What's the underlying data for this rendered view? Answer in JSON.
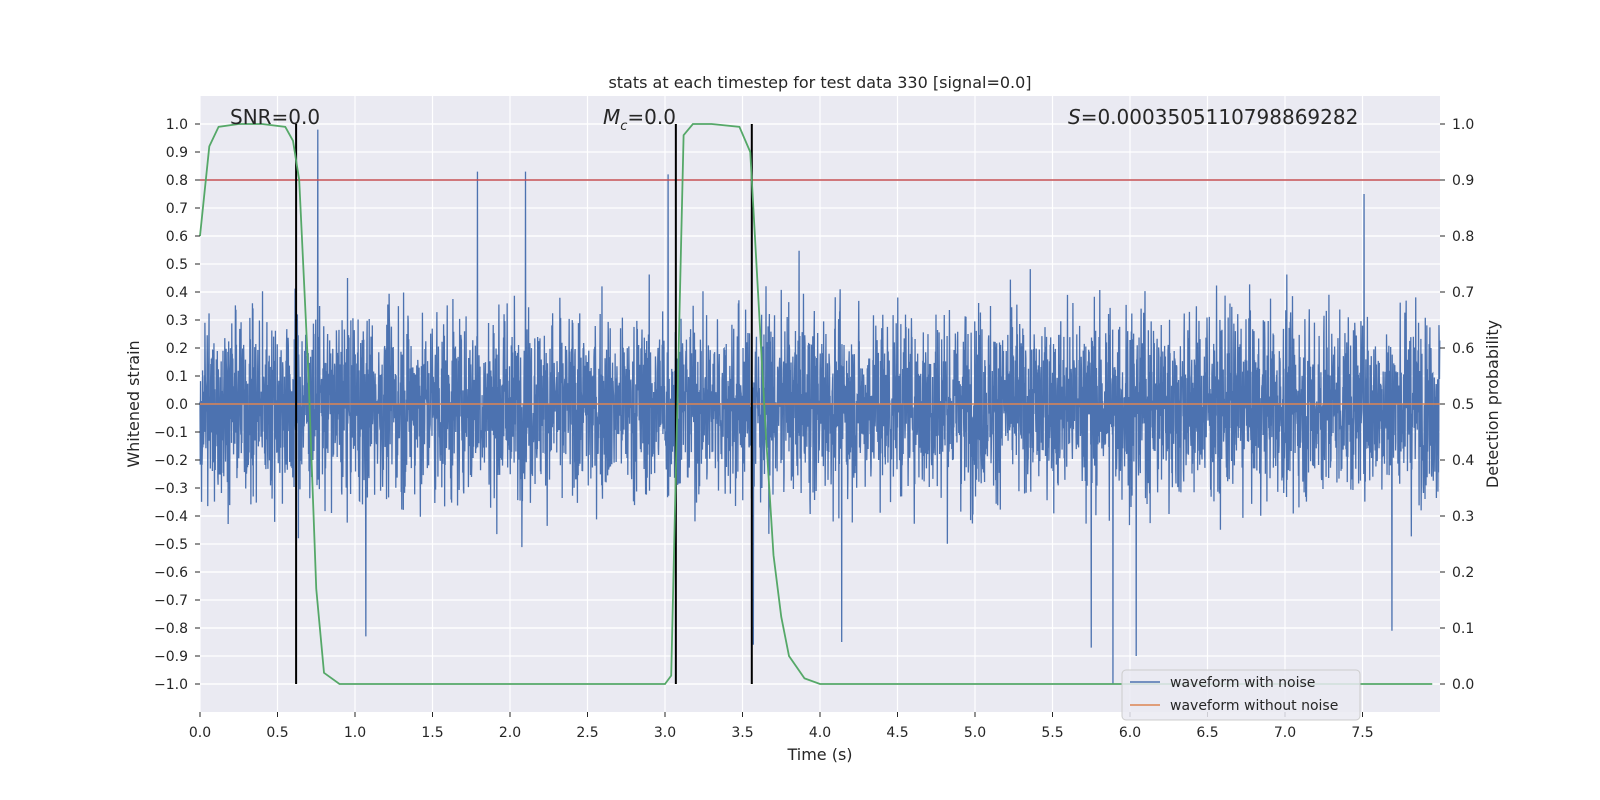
{
  "chart_data": {
    "type": "line",
    "title": "stats at each timestep for test data 330 [signal=0.0]",
    "xlabel": "Time (s)",
    "ylabel": "Whitened strain",
    "y2label": "Detection probability",
    "xlim": [
      0.0,
      8.0
    ],
    "ylim": [
      -1.1,
      1.1
    ],
    "y2lim": [
      -0.05,
      1.05
    ],
    "x_ticks": [
      0.0,
      0.5,
      1.0,
      1.5,
      2.0,
      2.5,
      3.0,
      3.5,
      4.0,
      4.5,
      5.0,
      5.5,
      6.0,
      6.5,
      7.0,
      7.5
    ],
    "x_tick_labels": [
      "0.0",
      "0.5",
      "1.0",
      "1.5",
      "2.0",
      "2.5",
      "3.0",
      "3.5",
      "4.0",
      "4.5",
      "5.0",
      "5.5",
      "6.0",
      "6.5",
      "7.0",
      "7.5"
    ],
    "y_ticks": [
      1.0,
      0.9,
      0.8,
      0.7,
      0.6,
      0.5,
      0.4,
      0.3,
      0.2,
      0.1,
      0.0,
      -0.1,
      -0.2,
      -0.3,
      -0.4,
      -0.5,
      -0.6,
      -0.7,
      -0.8,
      -0.9,
      -1.0
    ],
    "y_tick_labels": [
      "1.0",
      "0.9",
      "0.8",
      "0.7",
      "0.6",
      "0.5",
      "0.4",
      "0.3",
      "0.2",
      "0.1",
      "0.0",
      "−0.1",
      "−0.2",
      "−0.3",
      "−0.4",
      "−0.5",
      "−0.6",
      "−0.7",
      "−0.8",
      "−0.9",
      "−1.0"
    ],
    "y2_ticks": [
      1.0,
      0.9,
      0.8,
      0.7,
      0.6,
      0.5,
      0.4,
      0.3,
      0.2,
      0.1,
      0.0
    ],
    "y2_tick_labels": [
      "1.0",
      "0.9",
      "0.8",
      "0.7",
      "0.6",
      "0.5",
      "0.4",
      "0.3",
      "0.2",
      "0.1",
      "0.0"
    ],
    "grid": true,
    "legend_position": "bottom-right",
    "series": [
      {
        "name": "waveform with noise",
        "color": "#4c72b0",
        "axis": "left",
        "description": "noisy whitened strain, roughly within ±0.45 with spikes up to 0.98 and down to -1.0",
        "noise_amplitude": 0.16,
        "spikes": [
          {
            "x": 0.76,
            "y": 0.98
          },
          {
            "x": 3.02,
            "y": 0.82
          },
          {
            "x": 1.79,
            "y": 0.83
          },
          {
            "x": 2.1,
            "y": 0.83
          },
          {
            "x": 7.51,
            "y": 0.75
          },
          {
            "x": 5.89,
            "y": -1.0
          },
          {
            "x": 6.04,
            "y": -0.9
          },
          {
            "x": 5.75,
            "y": -0.87
          },
          {
            "x": 1.07,
            "y": -0.83
          },
          {
            "x": 3.57,
            "y": -0.86
          },
          {
            "x": 4.14,
            "y": -0.85
          },
          {
            "x": 7.69,
            "y": -0.81
          }
        ]
      },
      {
        "name": "waveform without noise",
        "color": "#dd8452",
        "axis": "left",
        "x": [
          0.0,
          8.0
        ],
        "y": [
          0.0,
          0.0
        ]
      },
      {
        "name": "detection probability",
        "color": "#55a868",
        "axis": "right",
        "x": [
          0.0,
          0.06,
          0.12,
          0.25,
          0.4,
          0.55,
          0.6,
          0.64,
          0.7,
          0.75,
          0.8,
          0.9,
          1.0,
          2.0,
          3.0,
          3.04,
          3.08,
          3.12,
          3.18,
          3.3,
          3.48,
          3.55,
          3.6,
          3.65,
          3.7,
          3.75,
          3.8,
          3.9,
          4.0,
          5.0,
          7.95
        ],
        "y": [
          0.8,
          0.96,
          0.995,
          1.0,
          1.0,
          0.995,
          0.97,
          0.9,
          0.55,
          0.17,
          0.02,
          0.0,
          0.0,
          0.0,
          0.0,
          0.015,
          0.5,
          0.98,
          1.0,
          1.0,
          0.995,
          0.95,
          0.7,
          0.45,
          0.23,
          0.12,
          0.05,
          0.01,
          0.0,
          0.0,
          0.0
        ]
      }
    ],
    "threshold_line": {
      "y2": 0.9,
      "color": "#c44e52"
    },
    "vertical_lines": [
      0.62,
      3.07,
      3.56
    ],
    "annotations": [
      {
        "text": "SNR=0.0",
        "x": 0.2
      },
      {
        "text_parts": [
          "M",
          "c",
          "=0.0"
        ],
        "x": 2.61
      },
      {
        "text_parts": [
          "S",
          "=0.0003505110798869282"
        ],
        "x": 5.6
      }
    ]
  }
}
